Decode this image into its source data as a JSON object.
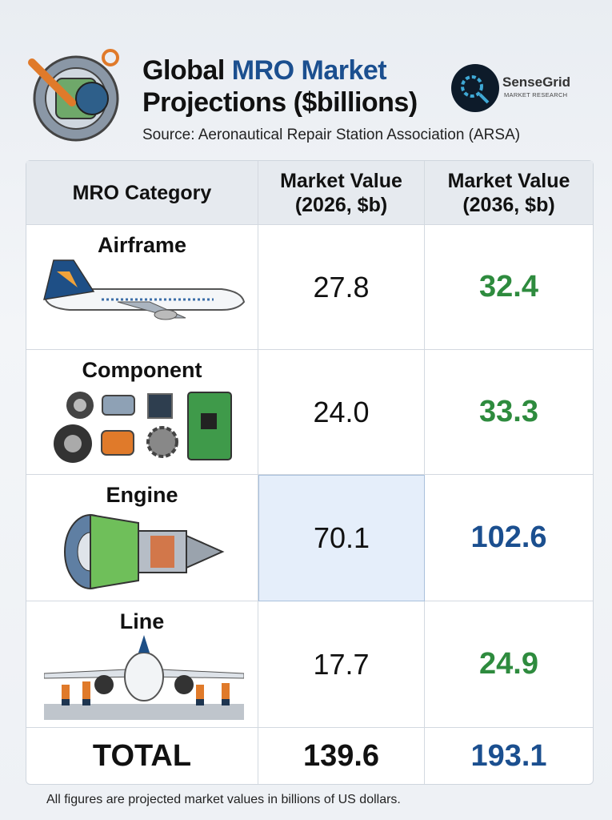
{
  "header": {
    "title_start": "Global",
    "title_highlight": "MRO Market",
    "title_end": "Projections ($billions)",
    "source": "Source: Aeronautical Repair Station Association (ARSA)"
  },
  "logo": {
    "name": "SenseGrid",
    "tagline": "MARKET RESEARCH"
  },
  "table": {
    "columns": [
      "MRO Category",
      "Market Value (2026, $b)",
      "Market Value (2036, $b)"
    ],
    "rows": [
      [
        "Airframe",
        "27.8",
        "32.4"
      ],
      [
        "Component",
        "24.0",
        "33.3"
      ],
      [
        "Engine",
        "70.1",
        "102.6"
      ],
      [
        "Line",
        "17.7",
        "24.9"
      ]
    ],
    "total": [
      "TOTAL",
      "139.6",
      "193.1"
    ]
  },
  "footer": {
    "note": "All figures are projected market values in billions of US dollars."
  }
}
